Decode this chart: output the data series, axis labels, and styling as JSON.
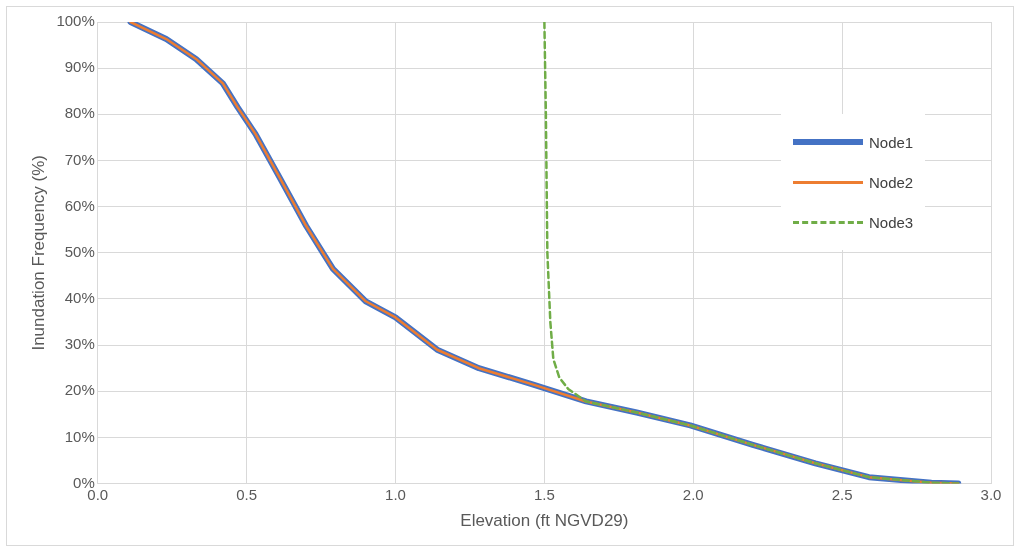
{
  "chart_data": {
    "type": "line",
    "xlabel": "Elevation (ft NGVD29)",
    "ylabel": "Inundation Frequency (%)",
    "xlim": [
      0,
      3
    ],
    "xticks": [
      {
        "value": 0,
        "label": "0.0"
      },
      {
        "value": 0.5,
        "label": "0.5"
      },
      {
        "value": 1,
        "label": "1.0"
      },
      {
        "value": 1.5,
        "label": "1.5"
      },
      {
        "value": 2,
        "label": "2.0"
      },
      {
        "value": 2.5,
        "label": "2.5"
      },
      {
        "value": 3,
        "label": "3.0"
      }
    ],
    "ylim": [
      0,
      100
    ],
    "yticks": [
      {
        "value": 0,
        "label": "0%"
      },
      {
        "value": 10,
        "label": "10%"
      },
      {
        "value": 20,
        "label": "20%"
      },
      {
        "value": 30,
        "label": "30%"
      },
      {
        "value": 40,
        "label": "40%"
      },
      {
        "value": 50,
        "label": "50%"
      },
      {
        "value": 60,
        "label": "60%"
      },
      {
        "value": 70,
        "label": "70%"
      },
      {
        "value": 80,
        "label": "80%"
      },
      {
        "value": 90,
        "label": "90%"
      },
      {
        "value": 100,
        "label": "100%"
      }
    ],
    "grid": true,
    "legend": "right",
    "marker": "none",
    "series": [
      {
        "name": "Node1",
        "color": "#4472c4",
        "line_style": "solid",
        "x": [
          0.11,
          0.23,
          0.33,
          0.42,
          0.47,
          0.53,
          0.61,
          0.7,
          0.79,
          0.9,
          1.0,
          1.14,
          1.28,
          1.46,
          1.64,
          1.81,
          1.99,
          2.2,
          2.41,
          2.59,
          2.8,
          2.89
        ],
        "values": [
          100,
          96.3,
          92,
          86.7,
          81.5,
          75.7,
          66.4,
          55.8,
          46.5,
          39.5,
          36,
          29,
          25,
          21.5,
          17.8,
          15.4,
          12.6,
          8.4,
          4.4,
          1.4,
          0.2,
          0
        ]
      },
      {
        "name": "Node2",
        "color": "#ed7d31",
        "line_style": "solid",
        "x": [
          0.11,
          0.23,
          0.33,
          0.42,
          0.47,
          0.53,
          0.61,
          0.7,
          0.79,
          0.9,
          1.0,
          1.14,
          1.28,
          1.46,
          1.64,
          1.81,
          1.99,
          2.2,
          2.41,
          2.59,
          2.8,
          2.89
        ],
        "values": [
          100,
          96.3,
          92,
          86.7,
          81.5,
          75.7,
          66.4,
          55.8,
          46.5,
          39.5,
          36,
          29,
          25,
          21.5,
          17.8,
          15.4,
          12.6,
          8.4,
          4.4,
          1.4,
          0.2,
          0
        ]
      },
      {
        "name": "Node3",
        "color": "#70ad47",
        "line_style": "dashed",
        "x": [
          1.5,
          1.505,
          1.51,
          1.52,
          1.53,
          1.55,
          1.58,
          1.64,
          1.81,
          1.99,
          2.2,
          2.41,
          2.59,
          2.8,
          2.89
        ],
        "values": [
          100,
          80,
          50,
          35,
          27,
          23,
          20.5,
          17.8,
          15.4,
          12.6,
          8.4,
          4.4,
          1.4,
          0.2,
          0
        ]
      }
    ]
  }
}
